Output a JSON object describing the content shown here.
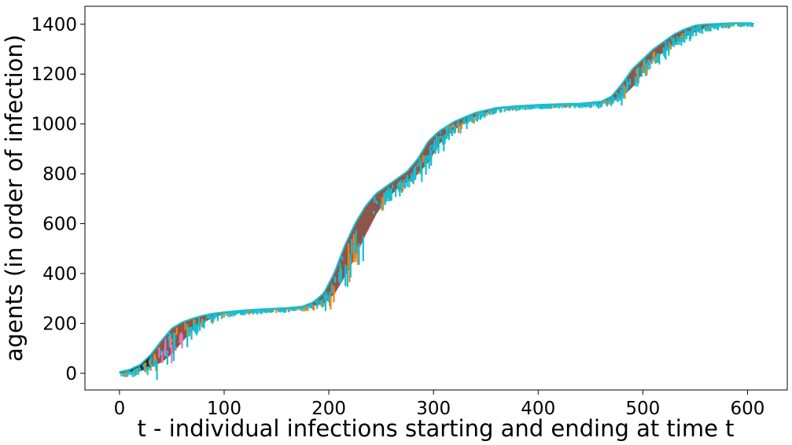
{
  "chart_data": {
    "type": "area",
    "title": "",
    "xlabel": "t - individual infections starting and ending at time t",
    "ylabel": "agents (in order of infection)",
    "xlim": [
      -33,
      638
    ],
    "ylim": [
      -67,
      1472
    ],
    "xticks": [
      0,
      100,
      200,
      300,
      400,
      500,
      600
    ],
    "yticks": [
      0,
      200,
      400,
      600,
      800,
      1000,
      1200,
      1400
    ],
    "xtick_labels": [
      "0",
      "100",
      "200",
      "300",
      "400",
      "500",
      "600"
    ],
    "ytick_labels": [
      "0",
      "200",
      "400",
      "600",
      "800",
      "1000",
      "1200",
      "1400"
    ],
    "grid": false,
    "legend": "none",
    "colors": {
      "main": "#8c564b",
      "accent": "#17becf",
      "secondary": "#ff7f0e",
      "minor": "#e377c2",
      "early": "#2b2b2b"
    },
    "series": [
      {
        "role": "lower-edge-infection-start",
        "x": [
          0,
          10,
          20,
          30,
          40,
          50,
          60,
          70,
          80,
          90,
          100,
          120,
          140,
          160,
          175,
          185,
          195,
          205,
          215,
          225,
          235,
          245,
          255,
          265,
          275,
          285,
          295,
          305,
          320,
          340,
          360,
          380,
          400,
          420,
          440,
          460,
          470,
          480,
          490,
          500,
          510,
          520,
          530,
          540,
          550,
          560,
          570,
          580,
          590,
          605
        ],
        "y": [
          0,
          3,
          10,
          25,
          45,
          80,
          130,
          175,
          205,
          225,
          240,
          250,
          255,
          260,
          265,
          270,
          280,
          320,
          390,
          470,
          560,
          640,
          700,
          740,
          770,
          800,
          850,
          920,
          980,
          1030,
          1060,
          1070,
          1075,
          1078,
          1080,
          1082,
          1090,
          1110,
          1150,
          1210,
          1260,
          1290,
          1320,
          1350,
          1370,
          1385,
          1395,
          1400,
          1402,
          1405
        ]
      },
      {
        "role": "upper-edge-infection-end",
        "x": [
          0,
          10,
          20,
          30,
          40,
          50,
          60,
          70,
          80,
          90,
          100,
          120,
          140,
          160,
          175,
          185,
          195,
          205,
          215,
          225,
          235,
          245,
          255,
          265,
          275,
          285,
          295,
          305,
          320,
          340,
          360,
          380,
          400,
          420,
          440,
          460,
          470,
          480,
          490,
          500,
          510,
          520,
          530,
          540,
          550,
          560,
          570,
          580,
          590,
          605
        ],
        "y": [
          5,
          15,
          35,
          75,
          130,
          180,
          205,
          220,
          232,
          240,
          245,
          253,
          258,
          262,
          268,
          285,
          320,
          400,
          510,
          600,
          670,
          720,
          750,
          780,
          810,
          860,
          930,
          970,
          1010,
          1045,
          1065,
          1072,
          1077,
          1080,
          1082,
          1090,
          1110,
          1160,
          1220,
          1260,
          1300,
          1330,
          1360,
          1380,
          1395,
          1400,
          1402,
          1404,
          1405,
          1405
        ]
      }
    ]
  }
}
